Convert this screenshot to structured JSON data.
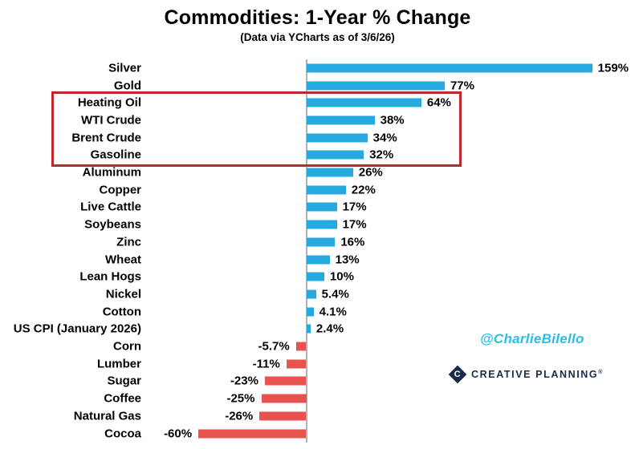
{
  "chart_data": {
    "type": "bar",
    "orientation": "horizontal",
    "title": "Commodities: 1-Year % Change",
    "subtitle": "(Data via YCharts as of 3/6/26)",
    "categories": [
      "Silver",
      "Gold",
      "Heating Oil",
      "WTI Crude",
      "Brent Crude",
      "Gasoline",
      "Aluminum",
      "Copper",
      "Live Cattle",
      "Soybeans",
      "Zinc",
      "Wheat",
      "Lean Hogs",
      "Nickel",
      "Cotton",
      "US CPI (January 2026)",
      "Corn",
      "Lumber",
      "Sugar",
      "Coffee",
      "Natural Gas",
      "Cocoa"
    ],
    "values": [
      159,
      77,
      64,
      38,
      34,
      32,
      26,
      22,
      17,
      17,
      16,
      13,
      10,
      5.4,
      4.1,
      2.4,
      -5.7,
      -11,
      -23,
      -25,
      -26,
      -60
    ],
    "value_labels": [
      "159%",
      "77%",
      "64%",
      "38%",
      "34%",
      "32%",
      "26%",
      "22%",
      "17%",
      "17%",
      "16%",
      "13%",
      "10%",
      "5.4%",
      "4.1%",
      "2.4%",
      "-5.7%",
      "-11%",
      "-23%",
      "-25%",
      "-26%",
      "-60%"
    ],
    "xlim": [
      -70,
      170
    ],
    "axis": {
      "zero_line_visible": true,
      "tick_labels_visible": false,
      "grid": false
    },
    "legend": "none",
    "colors": {
      "positive_bar": "#25A9DF",
      "negative_bar": "#E9534F",
      "highlight_box": "#C0272D"
    },
    "highlight": {
      "rows": [
        "Heating Oil",
        "WTI Crude",
        "Brent Crude",
        "Gasoline"
      ]
    }
  },
  "watermark": {
    "handle": "@CharlieBilello",
    "handle_color": "#2BBCE8",
    "logo_monogram": "C",
    "logo_text": "CREATIVE PLANNING",
    "logo_registered": "®",
    "logo_color": "#1A2B49"
  }
}
